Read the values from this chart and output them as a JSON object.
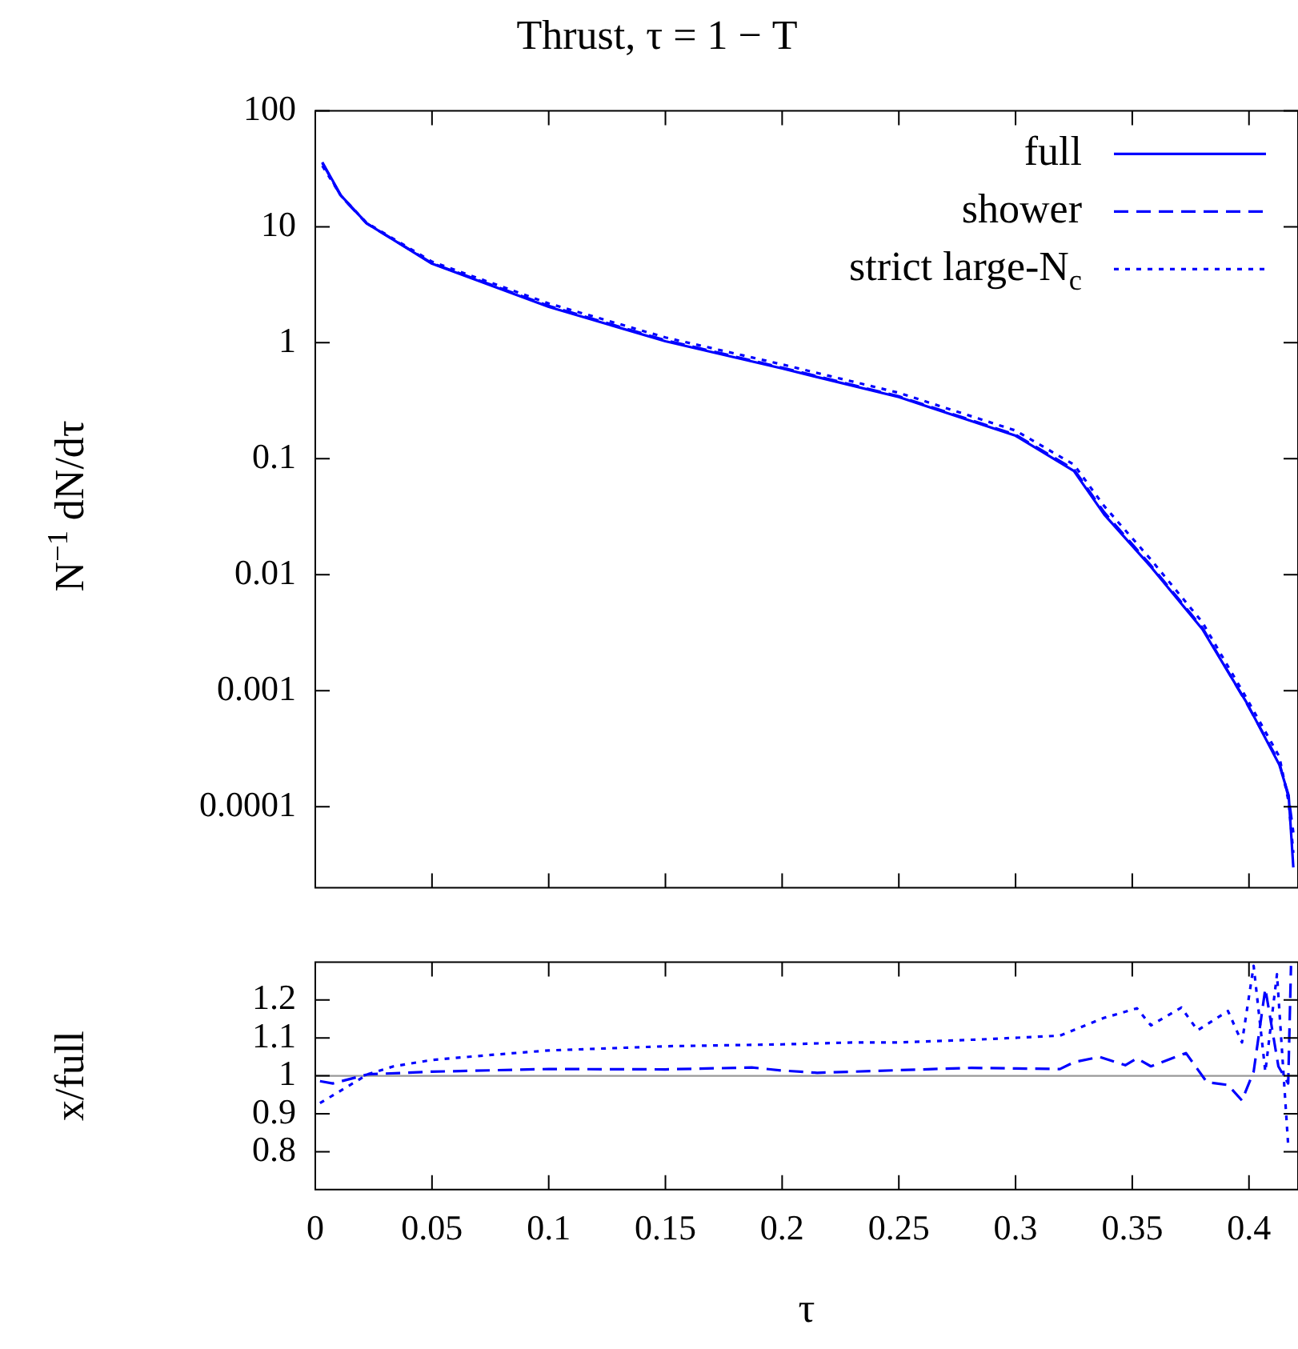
{
  "chart_data": [
    {
      "type": "line",
      "title": "Thrust, τ = 1 − T",
      "ylabel": "N$^{−1}$ dN/dτ",
      "log": "y",
      "legend": "top right",
      "grid": false,
      "tick_labels": "y",
      "marker": "none",
      "xlim": [
        0,
        0.421
      ],
      "xticks": [
        0,
        0.05,
        0.1,
        0.15,
        0.2,
        0.25,
        0.3,
        0.35,
        0.4
      ],
      "ylim": [
        2e-05,
        100
      ],
      "yticks": [
        0.0001,
        0.001,
        0.01,
        0.1,
        1,
        10,
        100
      ],
      "x": [
        0.003,
        0.011,
        0.022,
        0.05,
        0.1,
        0.15,
        0.2,
        0.25,
        0.3,
        0.325,
        0.338,
        0.358,
        0.38,
        0.399,
        0.413,
        0.417,
        0.419
      ],
      "series": [
        {
          "name": "full",
          "color": "#0000ff",
          "line_style": "solid",
          "values": [
            36,
            18.6,
            10.7,
            4.8,
            2.04,
            1.03,
            0.6,
            0.34,
            0.158,
            0.0785,
            0.033,
            0.0117,
            0.0034,
            0.00079,
            0.00023,
            0.000125,
            3e-05
          ]
        },
        {
          "name": "shower",
          "color": "#0000ff",
          "line_style": "dashed",
          "values": [
            35.5,
            18.3,
            10.7,
            4.85,
            2.08,
            1.05,
            0.61,
            0.345,
            0.161,
            0.081,
            0.0345,
            0.012,
            0.0035,
            0.00078,
            0.00024,
            0.00012,
            6e-05
          ]
        },
        {
          "name": "strict large-N$_{c}$",
          "color": "#0000ff",
          "line_style": "dotted",
          "values": [
            33.5,
            18.5,
            10.8,
            5.0,
            2.18,
            1.11,
            0.65,
            0.37,
            0.175,
            0.089,
            0.039,
            0.0135,
            0.0039,
            0.00086,
            0.00027,
            0.00011,
            4e-05
          ]
        }
      ]
    },
    {
      "type": "line",
      "xlabel": "τ",
      "ylabel": "x/full",
      "grid": false,
      "marker": "none",
      "xlim": [
        0,
        0.421
      ],
      "xticks": [
        0,
        0.05,
        0.1,
        0.15,
        0.2,
        0.25,
        0.3,
        0.35,
        0.4
      ],
      "ylim": [
        0.7,
        1.3
      ],
      "yticks": [
        0.8,
        0.9,
        1,
        1.1,
        1.2
      ],
      "ref_lines": [
        {
          "axis": "y",
          "value": 1,
          "color": "#999999",
          "line_style": "solid"
        }
      ],
      "series": [
        {
          "color": "#0000ff",
          "line_style": "dashed",
          "x": [
            0.002,
            0.0075,
            0.0225,
            0.05,
            0.1,
            0.15,
            0.187,
            0.2,
            0.215,
            0.25,
            0.281,
            0.319,
            0.325,
            0.336,
            0.347,
            0.352,
            0.358,
            0.373,
            0.382,
            0.391,
            0.397,
            0.402,
            0.407,
            0.4126,
            0.4168,
            0.418
          ],
          "values": [
            0.986,
            0.98,
            1.004,
            1.011,
            1.018,
            1.017,
            1.022,
            1.014,
            1.008,
            1.015,
            1.021,
            1.018,
            1.036,
            1.05,
            1.028,
            1.046,
            1.025,
            1.06,
            0.983,
            0.976,
            0.935,
            1.011,
            1.23,
            1.025,
            0.98,
            1.29
          ]
        },
        {
          "color": "#0000ff",
          "line_style": "dotted",
          "x": [
            0.002,
            0.0225,
            0.0335,
            0.05,
            0.077,
            0.1,
            0.15,
            0.2,
            0.23,
            0.25,
            0.289,
            0.319,
            0.338,
            0.352,
            0.358,
            0.371,
            0.378,
            0.391,
            0.397,
            0.402,
            0.407,
            0.412,
            0.4168
          ],
          "values": [
            0.928,
            1.004,
            1.025,
            1.042,
            1.056,
            1.067,
            1.078,
            1.083,
            1.088,
            1.088,
            1.097,
            1.106,
            1.153,
            1.178,
            1.133,
            1.18,
            1.12,
            1.171,
            1.088,
            1.29,
            1.011,
            1.268,
            0.817
          ]
        }
      ]
    }
  ]
}
